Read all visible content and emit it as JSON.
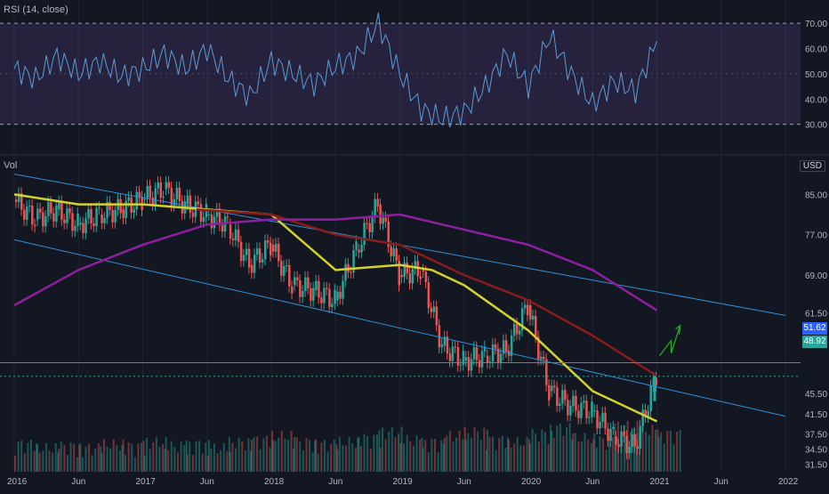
{
  "rsi_pane": {
    "label": "RSI (14, close)",
    "ticks": [
      "70.00",
      "60.00",
      "50.00",
      "40.00",
      "30.00"
    ]
  },
  "price_pane": {
    "label": "Vol",
    "currency": "USD",
    "ticks": [
      "85.00",
      "77.00",
      "69.00",
      "61.50",
      "55.50",
      "45.50",
      "41.50",
      "37.50",
      "34.50",
      "31.50"
    ],
    "last_price": "48.92",
    "marked_price": "51.62"
  },
  "x_axis": {
    "ticks": [
      "2016",
      "Jun",
      "2017",
      "Jun",
      "2018",
      "Jun",
      "2019",
      "Jun",
      "2020",
      "Jun",
      "2021",
      "Jun",
      "2022"
    ]
  },
  "colors": {
    "background": "#131722",
    "grid": "#1f2330",
    "up": "#26a69a",
    "down": "#ef5350",
    "rsi_line": "#5b9bd5",
    "rsi_band": "#7e57c2",
    "ma_fast": "#d4d12a",
    "ma_mid": "#8b1a1a",
    "ma_slow": "#8e1fa0",
    "channel": "#2e8fd8",
    "level_line": "#2e8fd8",
    "arrow": "#1fb51f",
    "last_price_tag": "#26a69a",
    "marked_price_tag": "#2962ff"
  },
  "chart_data": {
    "type": "candlestick",
    "x_range": [
      "2016-01",
      "2022-01"
    ],
    "rsi": {
      "name": "RSI (14, close)",
      "band": [
        30,
        70
      ],
      "ylim": [
        20,
        75
      ],
      "x": [
        "2016-01",
        "2016-03",
        "2016-05",
        "2016-07",
        "2016-09",
        "2016-11",
        "2017-01",
        "2017-03",
        "2017-05",
        "2017-07",
        "2017-09",
        "2017-11",
        "2018-01",
        "2018-03",
        "2018-05",
        "2018-07",
        "2018-09",
        "2018-11",
        "2019-01",
        "2019-03",
        "2019-05",
        "2019-07",
        "2019-09",
        "2019-11",
        "2020-01",
        "2020-03",
        "2020-05",
        "2020-07",
        "2020-09",
        "2020-11",
        "2021-01"
      ],
      "values": [
        52,
        48,
        57,
        50,
        55,
        49,
        52,
        58,
        52,
        60,
        48,
        41,
        55,
        50,
        46,
        53,
        57,
        70,
        50,
        36,
        32,
        35,
        45,
        58,
        45,
        65,
        50,
        38,
        47,
        43,
        63
      ]
    },
    "price": {
      "ylim": [
        30,
        90
      ],
      "x": [
        "2016-01",
        "2016-03",
        "2016-05",
        "2016-07",
        "2016-09",
        "2016-11",
        "2017-01",
        "2017-03",
        "2017-05",
        "2017-07",
        "2017-09",
        "2017-11",
        "2018-01",
        "2018-03",
        "2018-05",
        "2018-07",
        "2018-09",
        "2018-11",
        "2019-01",
        "2019-03",
        "2019-05",
        "2019-07",
        "2019-09",
        "2019-11",
        "2020-01",
        "2020-03",
        "2020-05",
        "2020-07",
        "2020-09",
        "2020-11",
        "2021-01"
      ],
      "close": [
        84,
        80,
        82,
        79,
        81,
        82,
        84,
        86,
        83,
        81,
        79,
        71,
        75,
        67,
        66,
        64,
        74,
        83,
        69,
        70,
        55,
        52,
        53,
        54,
        63,
        46,
        43,
        42,
        37,
        35,
        49
      ],
      "volume": [
        8,
        6,
        7,
        6,
        8,
        7,
        9,
        7,
        8,
        6,
        9,
        10,
        12,
        9,
        8,
        9,
        11,
        14,
        10,
        9,
        12,
        14,
        10,
        9,
        13,
        16,
        11,
        10,
        17,
        15,
        13
      ],
      "last": 48.92,
      "marked_level": 51.62
    },
    "moving_averages": [
      {
        "x": [
          "2016-01",
          "2016-07",
          "2017-01",
          "2017-07",
          "2018-01",
          "2018-07",
          "2019-01",
          "2019-04",
          "2019-07",
          "2020-01",
          "2020-07",
          "2021-01"
        ],
        "values": [
          85,
          83,
          83,
          82,
          81,
          70,
          71,
          70,
          67,
          58,
          46,
          40
        ]
      },
      {
        "x": [
          "2017-06",
          "2018-01",
          "2018-07",
          "2019-01",
          "2019-07",
          "2020-01",
          "2020-07",
          "2021-01"
        ],
        "values": [
          82,
          81,
          77,
          75,
          69,
          64,
          57,
          49
        ]
      },
      {
        "x": [
          "2016-01",
          "2016-07",
          "2017-01",
          "2017-07",
          "2018-01",
          "2018-07",
          "2019-01",
          "2019-07",
          "2020-01",
          "2020-07",
          "2021-01"
        ],
        "values": [
          63,
          70,
          75,
          79,
          80,
          80,
          81,
          78,
          75,
          70,
          62
        ]
      }
    ],
    "trend_channel": {
      "upper": {
        "x": [
          "2016-01",
          "2022-01"
        ],
        "values": [
          89,
          61
        ]
      },
      "lower": {
        "x": [
          "2016-01",
          "2022-01"
        ],
        "values": [
          76,
          41
        ]
      }
    }
  }
}
